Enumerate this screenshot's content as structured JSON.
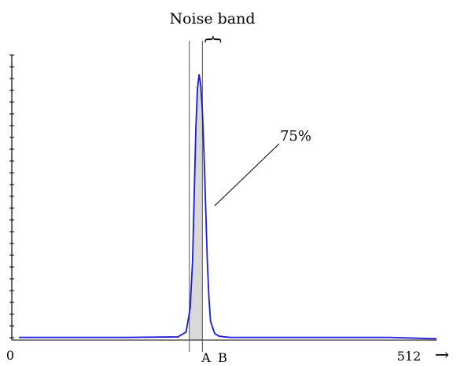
{
  "colors": {
    "curve": "#1a1ad9",
    "band_fill": "#d9d9d9",
    "axis": "#000000",
    "background": "#ffffff"
  },
  "chart_data": {
    "type": "area",
    "title": "",
    "xlabel": "",
    "ylabel": "",
    "xlim": [
      0,
      512
    ],
    "ylim": [
      0,
      1
    ],
    "x_tick_labels": [
      "0",
      "512"
    ],
    "x_axis_arrow": "→",
    "grid": false,
    "legend": "none",
    "series": [
      {
        "x": [
          0,
          130,
          195,
          205,
          210,
          213,
          215,
          217,
          219,
          221,
          223,
          225,
          227,
          229,
          231,
          233,
          235,
          240,
          245,
          252,
          260,
          300,
          400,
          455,
          512
        ],
        "y": [
          0.01,
          0.01,
          0.012,
          0.03,
          0.12,
          0.3,
          0.55,
          0.8,
          0.95,
          1.0,
          0.96,
          0.86,
          0.7,
          0.5,
          0.3,
          0.16,
          0.07,
          0.025,
          0.015,
          0.012,
          0.01,
          0.01,
          0.01,
          0.01,
          0.005
        ]
      }
    ],
    "annotations": {
      "band_label": "Noise band",
      "band_start_label": "A",
      "band_end_label": "B",
      "band_start": 209,
      "band_end": 225,
      "percent_label": "75%"
    }
  }
}
